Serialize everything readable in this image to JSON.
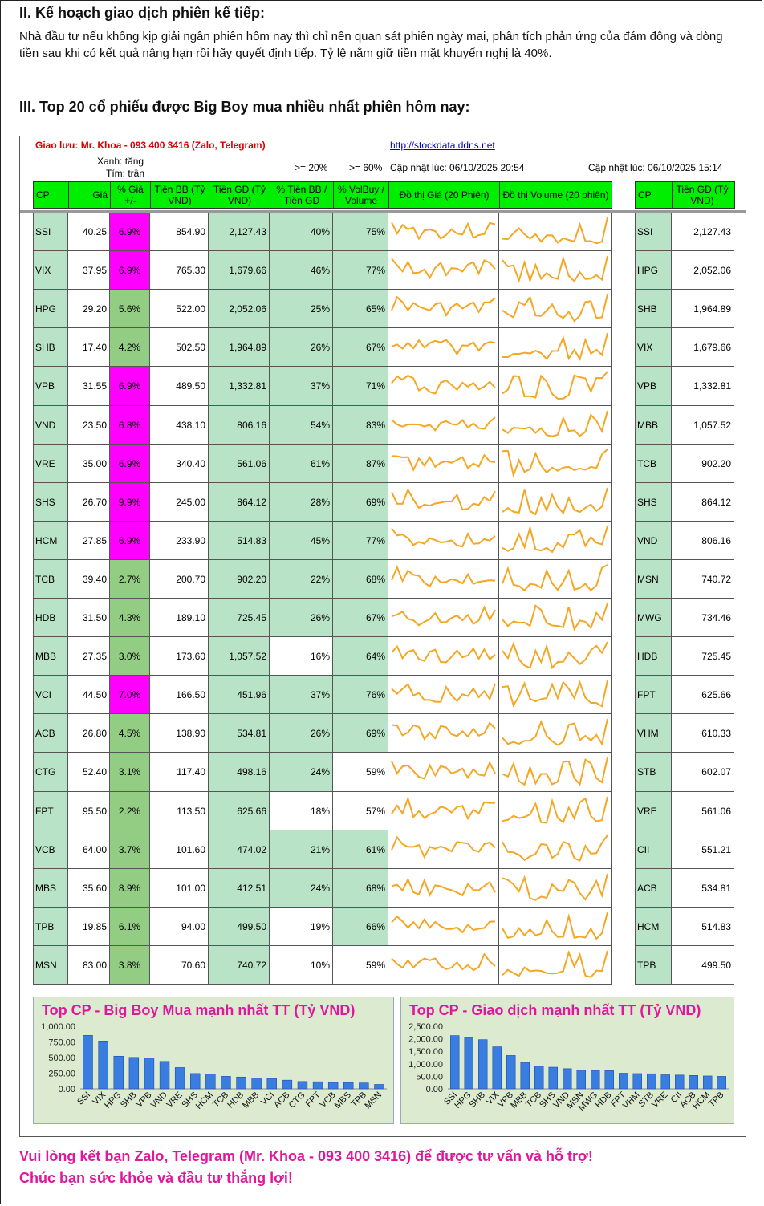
{
  "section2": {
    "heading": "II. Kế hoạch giao dịch phiên kế tiếp:",
    "text": "Nhà đầu tư nếu không kịp giải ngân phiên hôm nay thì chỉ nên quan sát phiên ngày mai, phân tích phản ứng của đám đông và dòng tiền sau khi có kết quả nâng hạn rồi hãy quyết định tiếp. Tỷ lệ nắm giữ tiền mặt khuyến nghị là 40%."
  },
  "section3": {
    "heading": "III. Top 20 cổ phiếu được Big Boy mua nhiều nhất phiên hôm nay:"
  },
  "panel": {
    "contact": "Giao lưu: Mr. Khoa - 093 400 3416 (Zalo, Telegram)",
    "link": "http://stockdata.ddns.net",
    "legend_green": "Xanh: tăng",
    "legend_purple": "Tím: trần",
    "thr1": ">= 20%",
    "thr2": ">= 60%",
    "update_left": "Cập nhật lúc: 06/10/2025 20:54",
    "update_right": "Cập nhật lúc: 06/10/2025 15:14"
  },
  "colors": {
    "header_green": "#00ee00",
    "cell_green": "#b9e3c6",
    "pct_green": "#92cd83",
    "ceiling_purple": "#ff00ff",
    "spark": "#f5a623",
    "pink_text": "#e0179c",
    "bar_blue": "#3a7de0"
  },
  "headers": [
    "CP",
    "Giá",
    "% Giá +/-",
    "Tiền BB (Tỷ VND)",
    "Tiền GD (Tỷ VND)",
    "% Tiền BB / Tiền GD",
    "% VolBuy / Volume",
    "Đồ thị Giá (20 Phiên)",
    "Đồ thị Volume (20 phiên)"
  ],
  "right_headers": [
    "CP",
    "Tiền GD (Tỷ VND)"
  ],
  "rows": [
    {
      "cp": "SSI",
      "gia": "40.25",
      "pct": "6.9%",
      "ceil": true,
      "bb": "854.90",
      "gd": "2,127.43",
      "bbgd": "40%",
      "vol": "75%"
    },
    {
      "cp": "VIX",
      "gia": "37.95",
      "pct": "6.9%",
      "ceil": true,
      "bb": "765.30",
      "gd": "1,679.66",
      "bbgd": "46%",
      "vol": "77%"
    },
    {
      "cp": "HPG",
      "gia": "29.20",
      "pct": "5.6%",
      "ceil": false,
      "bb": "522.00",
      "gd": "2,052.06",
      "bbgd": "25%",
      "vol": "65%"
    },
    {
      "cp": "SHB",
      "gia": "17.40",
      "pct": "4.2%",
      "ceil": false,
      "bb": "502.50",
      "gd": "1,964.89",
      "bbgd": "26%",
      "vol": "67%"
    },
    {
      "cp": "VPB",
      "gia": "31.55",
      "pct": "6.9%",
      "ceil": true,
      "bb": "489.50",
      "gd": "1,332.81",
      "bbgd": "37%",
      "vol": "71%"
    },
    {
      "cp": "VND",
      "gia": "23.50",
      "pct": "6.8%",
      "ceil": true,
      "bb": "438.10",
      "gd": "806.16",
      "bbgd": "54%",
      "vol": "83%"
    },
    {
      "cp": "VRE",
      "gia": "35.00",
      "pct": "6.9%",
      "ceil": true,
      "bb": "340.40",
      "gd": "561.06",
      "bbgd": "61%",
      "vol": "87%"
    },
    {
      "cp": "SHS",
      "gia": "26.70",
      "pct": "9.9%",
      "ceil": true,
      "bb": "245.00",
      "gd": "864.12",
      "bbgd": "28%",
      "vol": "69%"
    },
    {
      "cp": "HCM",
      "gia": "27.85",
      "pct": "6.9%",
      "ceil": true,
      "bb": "233.90",
      "gd": "514.83",
      "bbgd": "45%",
      "vol": "77%"
    },
    {
      "cp": "TCB",
      "gia": "39.40",
      "pct": "2.7%",
      "ceil": false,
      "bb": "200.70",
      "gd": "902.20",
      "bbgd": "22%",
      "vol": "68%"
    },
    {
      "cp": "HDB",
      "gia": "31.50",
      "pct": "4.3%",
      "ceil": false,
      "bb": "189.10",
      "gd": "725.45",
      "bbgd": "26%",
      "vol": "67%"
    },
    {
      "cp": "MBB",
      "gia": "27.35",
      "pct": "3.0%",
      "ceil": false,
      "bb": "173.60",
      "gd": "1,057.52",
      "bbgd": "16%",
      "vol": "64%"
    },
    {
      "cp": "VCI",
      "gia": "44.50",
      "pct": "7.0%",
      "ceil": true,
      "bb": "166.50",
      "gd": "451.96",
      "bbgd": "37%",
      "vol": "76%"
    },
    {
      "cp": "ACB",
      "gia": "26.80",
      "pct": "4.5%",
      "ceil": false,
      "bb": "138.90",
      "gd": "534.81",
      "bbgd": "26%",
      "vol": "69%"
    },
    {
      "cp": "CTG",
      "gia": "52.40",
      "pct": "3.1%",
      "ceil": false,
      "bb": "117.40",
      "gd": "498.16",
      "bbgd": "24%",
      "vol": "59%"
    },
    {
      "cp": "FPT",
      "gia": "95.50",
      "pct": "2.2%",
      "ceil": false,
      "bb": "113.50",
      "gd": "625.66",
      "bbgd": "18%",
      "vol": "57%"
    },
    {
      "cp": "VCB",
      "gia": "64.00",
      "pct": "3.7%",
      "ceil": false,
      "bb": "101.60",
      "gd": "474.02",
      "bbgd": "21%",
      "vol": "61%"
    },
    {
      "cp": "MBS",
      "gia": "35.60",
      "pct": "8.9%",
      "ceil": false,
      "bb": "101.00",
      "gd": "412.51",
      "bbgd": "24%",
      "vol": "68%"
    },
    {
      "cp": "TPB",
      "gia": "19.85",
      "pct": "6.1%",
      "ceil": false,
      "bb": "94.00",
      "gd": "499.50",
      "bbgd": "19%",
      "vol": "66%"
    },
    {
      "cp": "MSN",
      "gia": "83.00",
      "pct": "3.8%",
      "ceil": false,
      "bb": "70.60",
      "gd": "740.72",
      "bbgd": "10%",
      "vol": "59%"
    }
  ],
  "right_rows": [
    {
      "cp": "SSI",
      "gd": "2,127.43"
    },
    {
      "cp": "HPG",
      "gd": "2,052.06"
    },
    {
      "cp": "SHB",
      "gd": "1,964.89"
    },
    {
      "cp": "VIX",
      "gd": "1,679.66"
    },
    {
      "cp": "VPB",
      "gd": "1,332.81"
    },
    {
      "cp": "MBB",
      "gd": "1,057.52"
    },
    {
      "cp": "TCB",
      "gd": "902.20"
    },
    {
      "cp": "SHS",
      "gd": "864.12"
    },
    {
      "cp": "VND",
      "gd": "806.16"
    },
    {
      "cp": "MSN",
      "gd": "740.72"
    },
    {
      "cp": "MWG",
      "gd": "734.46"
    },
    {
      "cp": "HDB",
      "gd": "725.45"
    },
    {
      "cp": "FPT",
      "gd": "625.66"
    },
    {
      "cp": "VHM",
      "gd": "610.33"
    },
    {
      "cp": "STB",
      "gd": "602.07"
    },
    {
      "cp": "VRE",
      "gd": "561.06"
    },
    {
      "cp": "CII",
      "gd": "551.21"
    },
    {
      "cp": "ACB",
      "gd": "534.81"
    },
    {
      "cp": "HCM",
      "gd": "514.83"
    },
    {
      "cp": "TPB",
      "gd": "499.50"
    }
  ],
  "chart_data": [
    {
      "type": "bar",
      "title": "Top CP - Big Boy Mua mạnh nhất TT (Tỷ VND)",
      "categories": [
        "SSI",
        "VIX",
        "HPG",
        "SHB",
        "VPB",
        "VND",
        "VRE",
        "SHS",
        "HCM",
        "TCB",
        "HDB",
        "MBB",
        "VCI",
        "ACB",
        "CTG",
        "FPT",
        "VCB",
        "MBS",
        "TPB",
        "MSN"
      ],
      "values": [
        854.9,
        765.3,
        522.0,
        502.5,
        489.5,
        438.1,
        340.4,
        245.0,
        233.9,
        200.7,
        189.1,
        173.6,
        166.5,
        138.9,
        117.4,
        113.5,
        101.6,
        101.0,
        94.0,
        70.6
      ],
      "ylim": [
        0,
        1000
      ],
      "yticks": [
        "1,000.00",
        "750.00",
        "500.00",
        "250.00",
        "0.00"
      ]
    },
    {
      "type": "bar",
      "title": "Top CP - Giao dịch mạnh nhất TT (Tỷ VND)",
      "categories": [
        "SSI",
        "HPG",
        "SHB",
        "VIX",
        "VPB",
        "MBB",
        "TCB",
        "SHS",
        "VND",
        "MSN",
        "MWG",
        "HDB",
        "FPT",
        "VHM",
        "STB",
        "VRE",
        "CII",
        "ACB",
        "HCM",
        "TPB"
      ],
      "values": [
        2127.43,
        2052.06,
        1964.89,
        1679.66,
        1332.81,
        1057.52,
        902.2,
        864.12,
        806.16,
        740.72,
        734.46,
        725.45,
        625.66,
        610.33,
        602.07,
        561.06,
        551.21,
        534.81,
        514.83,
        499.5
      ],
      "ylim": [
        0,
        2500
      ],
      "yticks": [
        "2,500.00",
        "2,000.00",
        "1,500.00",
        "1,000.00",
        "500.00",
        "0.00"
      ]
    }
  ],
  "footer": {
    "line1": "Vui lòng kết bạn Zalo, Telegram (Mr. Khoa - 093 400 3416) để được tư vấn và hỗ trợ!",
    "line2": "Chúc bạn sức khỏe và đầu tư thắng lợi!"
  }
}
